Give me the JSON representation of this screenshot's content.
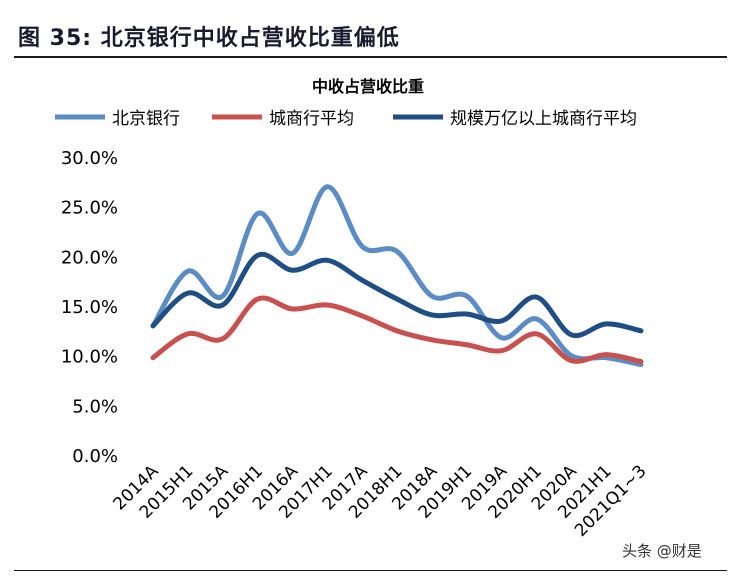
{
  "figure_title": "图 35: 北京银行中收占营收比重偏低",
  "watermark": "头条 @财是",
  "chart_data": {
    "type": "line",
    "title": "中收占营收比重",
    "legend_position": "top",
    "categories": [
      "2014A",
      "2015H1",
      "2015A",
      "2016H1",
      "2016A",
      "2017H1",
      "2017A",
      "2018H1",
      "2018A",
      "2019H1",
      "2019A",
      "2020H1",
      "2020A",
      "2021H1",
      "2021Q1~3"
    ],
    "ylim": [
      0,
      30
    ],
    "yticks": [
      "0.0%",
      "5.0%",
      "10.0%",
      "15.0%",
      "20.0%",
      "25.0%",
      "30.0%"
    ],
    "grid": false,
    "series": [
      {
        "name": "北京银行",
        "color": "#5B8CC6",
        "values": [
          13.0,
          18.5,
          16.0,
          24.3,
          20.3,
          27.0,
          21.0,
          20.5,
          16.0,
          16.0,
          11.8,
          13.7,
          10.0,
          9.8,
          9.1
        ]
      },
      {
        "name": "城商行平均",
        "color": "#C8504E",
        "values": [
          9.8,
          12.2,
          11.7,
          15.7,
          14.7,
          15.1,
          14.0,
          12.5,
          11.6,
          11.1,
          10.5,
          12.2,
          9.5,
          10.1,
          9.4
        ]
      },
      {
        "name": "规模万亿以上城商行平均",
        "color": "#1F4E85",
        "values": [
          13.0,
          16.3,
          15.1,
          20.1,
          18.6,
          19.6,
          17.6,
          15.7,
          14.1,
          14.2,
          13.5,
          15.9,
          12.1,
          13.2,
          12.5
        ]
      }
    ]
  }
}
